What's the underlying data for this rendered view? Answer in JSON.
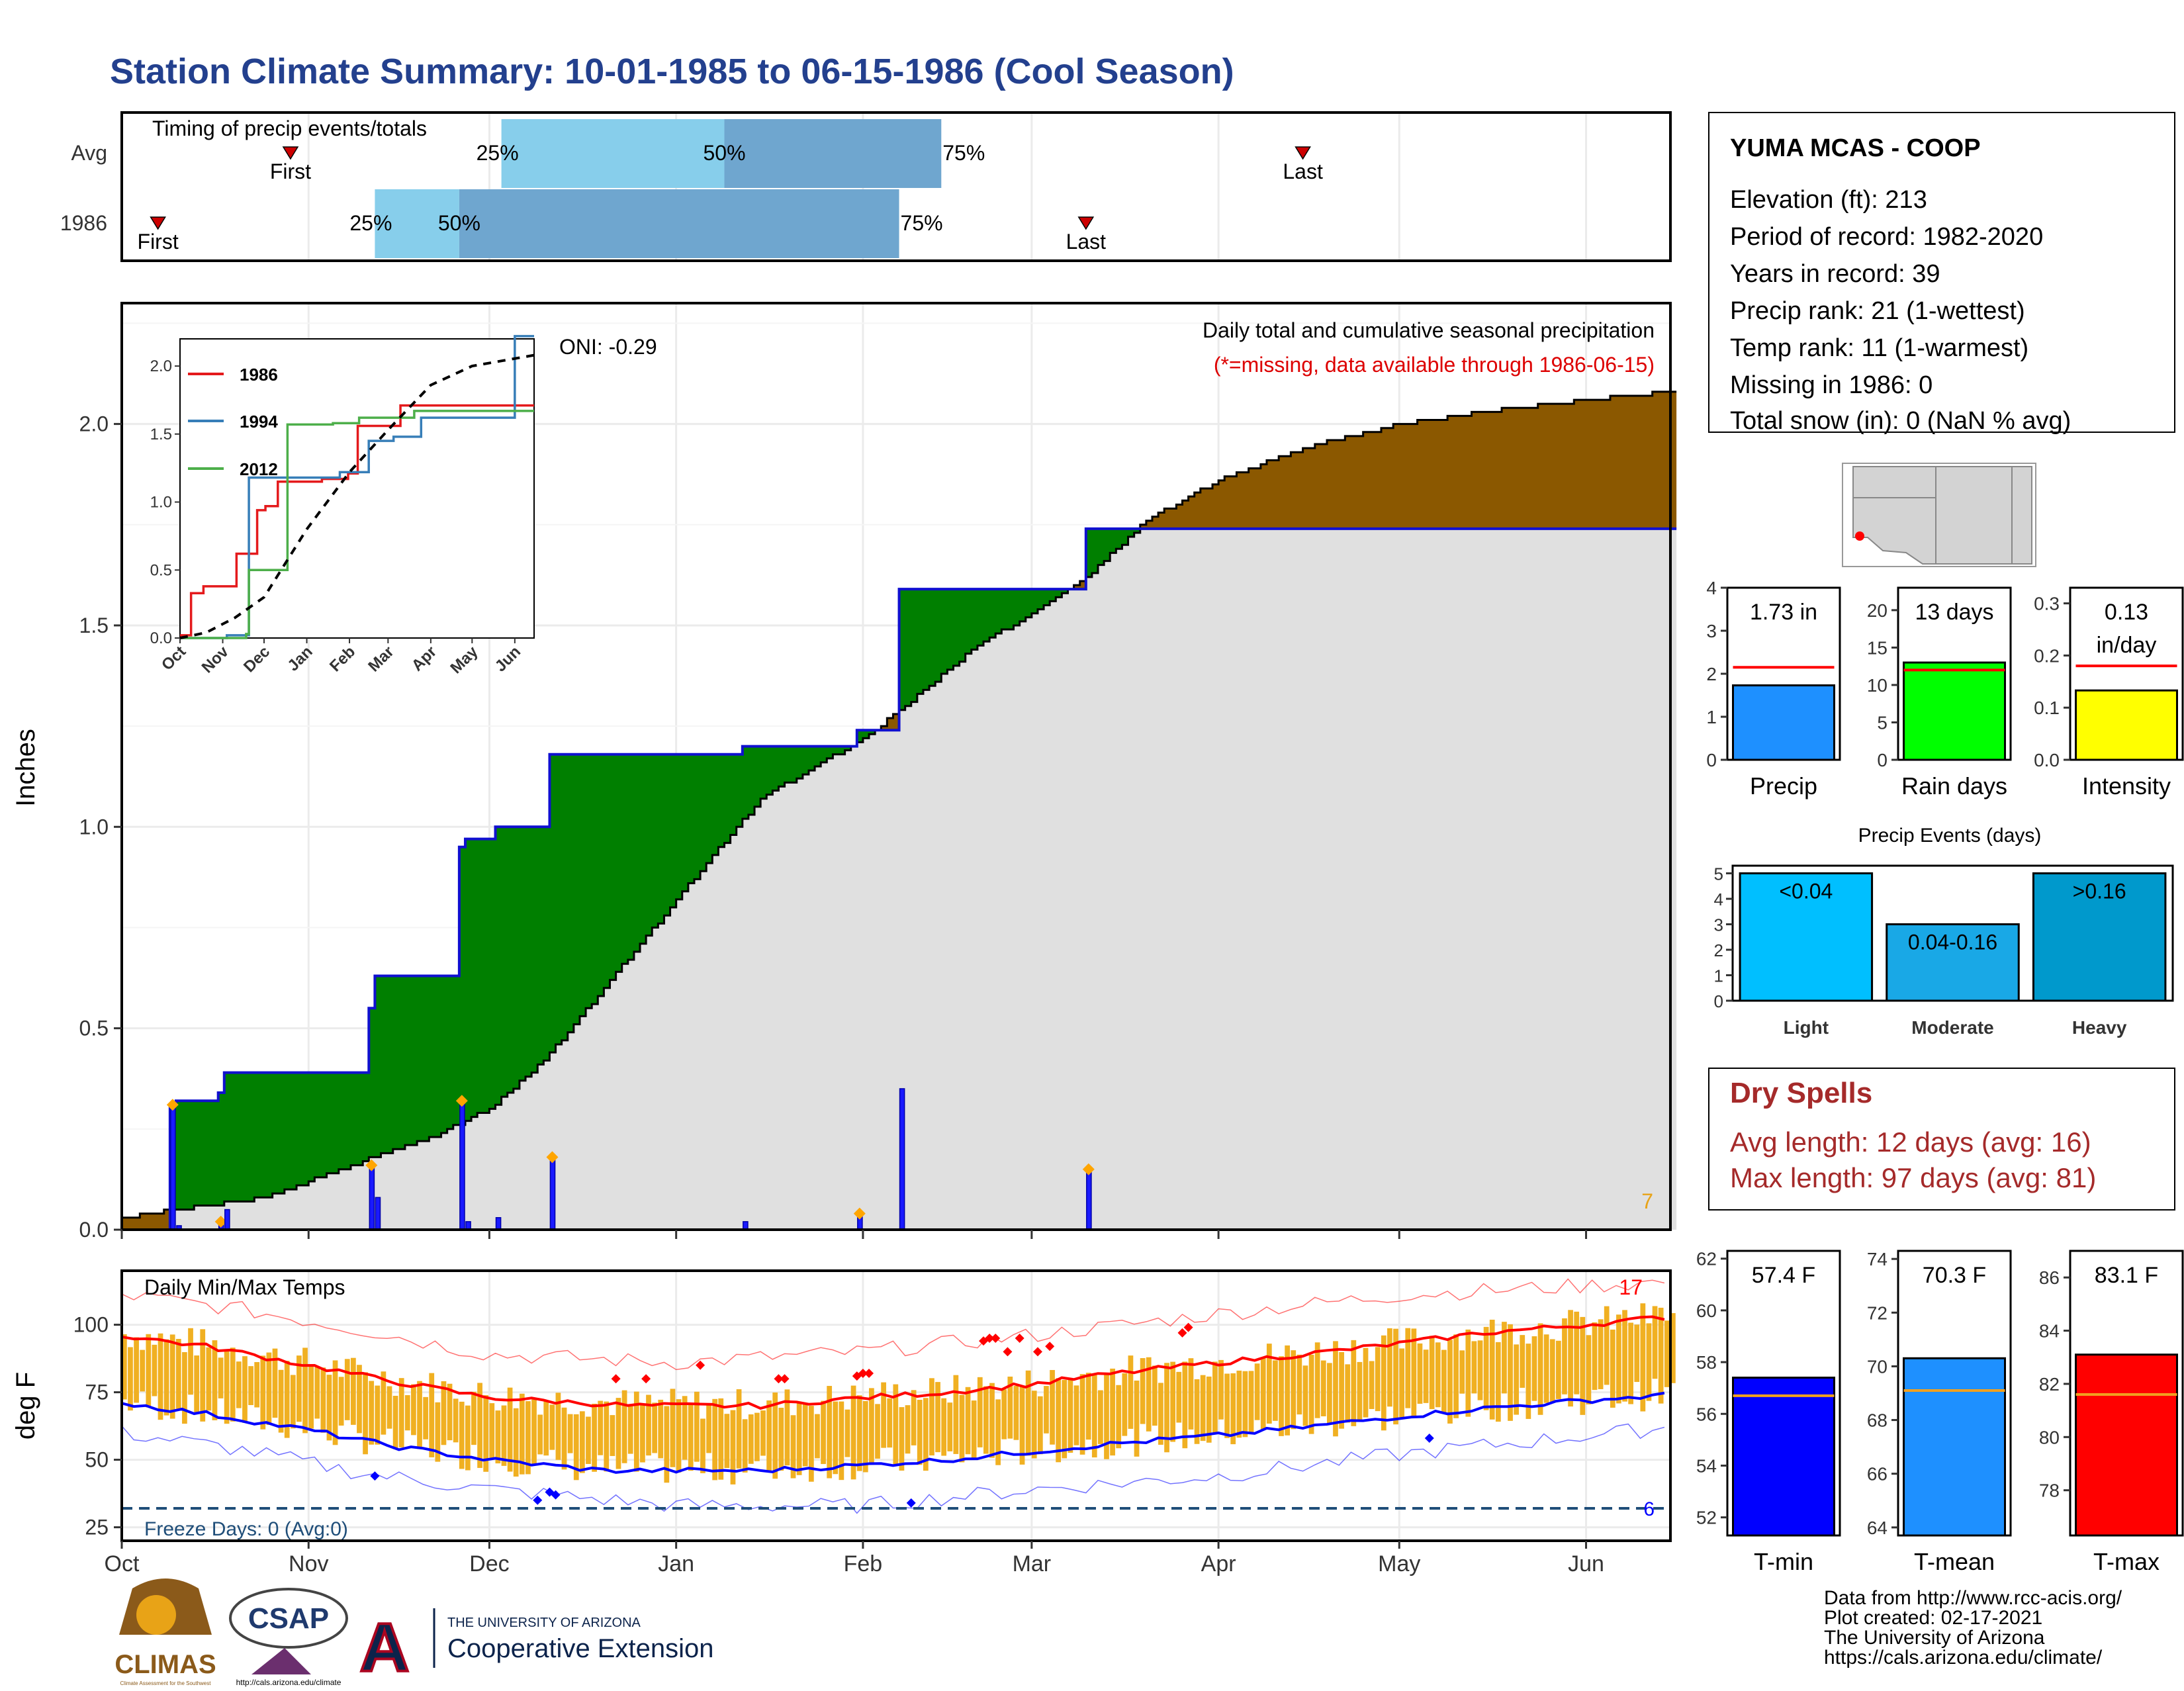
{
  "title": "Station Climate Summary: 10-01-1985 to 06-15-1986 (Cool Season)",
  "months": [
    "Oct",
    "Nov",
    "Dec",
    "Jan",
    "Feb",
    "Mar",
    "Apr",
    "May",
    "Jun"
  ],
  "timing": {
    "label": "Timing of precip events/totals",
    "rows": [
      "Avg",
      "1986"
    ],
    "first_label": "First",
    "last_label": "Last",
    "pct_labels": [
      "25%",
      "50%",
      "75%"
    ],
    "avg": {
      "first": "1985-10-29",
      "p25": "1985-12-03",
      "p50": "1986-01-09",
      "p75": "1986-02-14",
      "last": "1986-04-15"
    },
    "y1986": {
      "first": "1985-10-07",
      "p25": "1985-11-12",
      "p50": "1985-11-26",
      "p75": "1986-02-07",
      "last": "1986-03-10"
    },
    "colors": {
      "light": "#87ceeb",
      "dark": "#6fa6cf",
      "marker": "#cc0000"
    }
  },
  "precip": {
    "ylabel": "Inches",
    "yticks": [
      0.0,
      0.5,
      1.0,
      1.5,
      2.0
    ],
    "ytick_labels": [
      "0.0",
      "0.5",
      "1.0",
      "1.5",
      "2.0"
    ],
    "oni_label": "ONI: -0.29",
    "header_line1": "Daily total and cumulative seasonal precipitation",
    "header_line2": "(*=missing, data available through 1986-06-15)",
    "count_label": "7",
    "colors": {
      "observed": "#1010d0",
      "normal": "#000000",
      "above": "#007f00",
      "below": "#8b5800",
      "fill": "#e0e0e0",
      "daily": "#1a1aff",
      "dot": "#ffa500",
      "missing_text": "#dd0000",
      "count_text": "#e8a317"
    },
    "daily_events": [
      {
        "date": "1985-10-09",
        "value": 0.31,
        "marked": true
      },
      {
        "date": "1985-10-10",
        "value": 0.01,
        "marked": false
      },
      {
        "date": "1985-10-17",
        "value": 0.02,
        "marked": true
      },
      {
        "date": "1985-10-18",
        "value": 0.05,
        "marked": false
      },
      {
        "date": "1985-11-11",
        "value": 0.16,
        "marked": true
      },
      {
        "date": "1985-11-12",
        "value": 0.08,
        "marked": false
      },
      {
        "date": "1985-11-26",
        "value": 0.32,
        "marked": true
      },
      {
        "date": "1985-11-27",
        "value": 0.02,
        "marked": false
      },
      {
        "date": "1985-12-02",
        "value": 0.03,
        "marked": false
      },
      {
        "date": "1985-12-11",
        "value": 0.18,
        "marked": true
      },
      {
        "date": "1986-01-12",
        "value": 0.02,
        "marked": false
      },
      {
        "date": "1986-01-31",
        "value": 0.04,
        "marked": true
      },
      {
        "date": "1986-02-07",
        "value": 0.35,
        "marked": false
      },
      {
        "date": "1986-03-10",
        "value": 0.15,
        "marked": true
      }
    ],
    "normal_curve": [
      {
        "date": "1985-10-01",
        "value": 0.03
      },
      {
        "date": "1985-10-10",
        "value": 0.05
      },
      {
        "date": "1985-10-25",
        "value": 0.08
      },
      {
        "date": "1985-11-10",
        "value": 0.17
      },
      {
        "date": "1985-11-20",
        "value": 0.22
      },
      {
        "date": "1985-12-01",
        "value": 0.3
      },
      {
        "date": "1985-12-10",
        "value": 0.42
      },
      {
        "date": "1985-12-20",
        "value": 0.6
      },
      {
        "date": "1986-01-01",
        "value": 0.82
      },
      {
        "date": "1986-01-15",
        "value": 1.07
      },
      {
        "date": "1986-02-01",
        "value": 1.22
      },
      {
        "date": "1986-02-08",
        "value": 1.3
      },
      {
        "date": "1986-02-20",
        "value": 1.45
      },
      {
        "date": "1986-03-01",
        "value": 1.53
      },
      {
        "date": "1986-03-10",
        "value": 1.62
      },
      {
        "date": "1986-03-20",
        "value": 1.76
      },
      {
        "date": "1986-04-01",
        "value": 1.86
      },
      {
        "date": "1986-04-15",
        "value": 1.94
      },
      {
        "date": "1986-05-01",
        "value": 2.0
      },
      {
        "date": "1986-05-15",
        "value": 2.03
      },
      {
        "date": "1986-06-01",
        "value": 2.06
      },
      {
        "date": "1986-06-15",
        "value": 2.08
      }
    ]
  },
  "inset": {
    "legend": [
      "1986",
      "1994",
      "2012"
    ],
    "colors": [
      "#e41a1c",
      "#377eb8",
      "#4daf4a"
    ],
    "yticks": [
      0.0,
      0.5,
      1.0,
      1.5,
      2.0
    ],
    "ytick_labels": [
      "0.0",
      "0.5",
      "1.0",
      "1.5",
      "2.0"
    ],
    "ylim": [
      0,
      2.2
    ],
    "series": [
      {
        "name": "1986",
        "steps": [
          [
            "1985-10-01",
            0.02
          ],
          [
            "1985-10-09",
            0.33
          ],
          [
            "1985-10-18",
            0.38
          ],
          [
            "1985-11-11",
            0.62
          ],
          [
            "1985-11-26",
            0.94
          ],
          [
            "1985-12-02",
            0.97
          ],
          [
            "1985-12-11",
            1.15
          ],
          [
            "1986-01-12",
            1.17
          ],
          [
            "1986-01-31",
            1.21
          ],
          [
            "1986-02-07",
            1.56
          ],
          [
            "1986-03-10",
            1.71
          ],
          [
            "1986-06-15",
            1.71
          ]
        ]
      },
      {
        "name": "1994",
        "steps": [
          [
            "1985-10-01",
            0.0
          ],
          [
            "1985-11-04",
            0.02
          ],
          [
            "1985-11-20",
            1.18
          ],
          [
            "1986-01-25",
            1.22
          ],
          [
            "1986-02-15",
            1.45
          ],
          [
            "1986-03-05",
            1.48
          ],
          [
            "1986-03-25",
            1.62
          ],
          [
            "1986-05-20",
            1.62
          ],
          [
            "1986-06-01",
            2.22
          ],
          [
            "1986-06-15",
            2.22
          ]
        ]
      },
      {
        "name": "2012",
        "steps": [
          [
            "1985-10-01",
            0.0
          ],
          [
            "1985-11-18",
            0.03
          ],
          [
            "1985-11-20",
            0.5
          ],
          [
            "1985-12-18",
            1.57
          ],
          [
            "1986-01-20",
            1.58
          ],
          [
            "1986-02-08",
            1.62
          ],
          [
            "1986-03-20",
            1.67
          ],
          [
            "1986-06-15",
            1.67
          ]
        ]
      }
    ],
    "normal_curve": [
      {
        "date": "1985-10-01",
        "value": 0.0
      },
      {
        "date": "1985-10-20",
        "value": 0.04
      },
      {
        "date": "1985-11-10",
        "value": 0.15
      },
      {
        "date": "1985-12-01",
        "value": 0.3
      },
      {
        "date": "1986-01-01",
        "value": 0.8
      },
      {
        "date": "1986-02-01",
        "value": 1.22
      },
      {
        "date": "1986-03-01",
        "value": 1.53
      },
      {
        "date": "1986-04-01",
        "value": 1.86
      },
      {
        "date": "1986-05-01",
        "value": 2.0
      },
      {
        "date": "1986-06-15",
        "value": 2.08
      }
    ]
  },
  "temps": {
    "label": "Daily Min/Max Temps",
    "ylabel": "deg F",
    "yticks": [
      25,
      50,
      75,
      100
    ],
    "ytick_labels": [
      "25",
      "50",
      "75",
      "100"
    ],
    "ylim": [
      20,
      120
    ],
    "freeze_label": "Freeze Days: 0 (Avg:0)",
    "freeze_temp": 32,
    "record_high_count": "17",
    "record_low_count": "6",
    "colors": {
      "bar": "#f0b022",
      "max_normal": "#ff0000",
      "min_normal": "#0000ff",
      "freeze": "#1f4e79",
      "record_high": "#ff0000",
      "record_low": "#0000ff"
    },
    "max_normal": [
      {
        "date": "1985-10-01",
        "value": 96
      },
      {
        "date": "1985-10-15",
        "value": 92
      },
      {
        "date": "1985-11-01",
        "value": 85
      },
      {
        "date": "1985-11-15",
        "value": 79
      },
      {
        "date": "1985-12-01",
        "value": 73
      },
      {
        "date": "1985-12-25",
        "value": 70
      },
      {
        "date": "1986-01-15",
        "value": 70
      },
      {
        "date": "1986-02-01",
        "value": 73
      },
      {
        "date": "1986-02-15",
        "value": 75
      },
      {
        "date": "1986-03-01",
        "value": 78
      },
      {
        "date": "1986-03-15",
        "value": 82
      },
      {
        "date": "1986-04-01",
        "value": 86
      },
      {
        "date": "1986-04-15",
        "value": 89
      },
      {
        "date": "1986-05-01",
        "value": 93
      },
      {
        "date": "1986-05-15",
        "value": 97
      },
      {
        "date": "1986-06-01",
        "value": 100
      },
      {
        "date": "1986-06-15",
        "value": 103
      }
    ],
    "min_normal": [
      {
        "date": "1985-10-01",
        "value": 71
      },
      {
        "date": "1985-10-15",
        "value": 67
      },
      {
        "date": "1985-11-01",
        "value": 61
      },
      {
        "date": "1985-11-15",
        "value": 55
      },
      {
        "date": "1985-12-01",
        "value": 50
      },
      {
        "date": "1985-12-20",
        "value": 46
      },
      {
        "date": "1986-01-15",
        "value": 46
      },
      {
        "date": "1986-02-01",
        "value": 48
      },
      {
        "date": "1986-02-15",
        "value": 50
      },
      {
        "date": "1986-03-01",
        "value": 53
      },
      {
        "date": "1986-03-15",
        "value": 56
      },
      {
        "date": "1986-04-01",
        "value": 59
      },
      {
        "date": "1986-04-15",
        "value": 62
      },
      {
        "date": "1986-05-01",
        "value": 66
      },
      {
        "date": "1986-05-15",
        "value": 69
      },
      {
        "date": "1986-06-01",
        "value": 72
      },
      {
        "date": "1986-06-15",
        "value": 74
      }
    ],
    "record_high_line": [
      {
        "date": "1985-10-01",
        "value": 111
      },
      {
        "date": "1985-10-20",
        "value": 106
      },
      {
        "date": "1985-11-10",
        "value": 98
      },
      {
        "date": "1985-12-01",
        "value": 89
      },
      {
        "date": "1986-01-01",
        "value": 86
      },
      {
        "date": "1986-02-01",
        "value": 90
      },
      {
        "date": "1986-03-01",
        "value": 96
      },
      {
        "date": "1986-04-01",
        "value": 104
      },
      {
        "date": "1986-05-01",
        "value": 111
      },
      {
        "date": "1986-06-15",
        "value": 116
      }
    ],
    "record_low_line": [
      {
        "date": "1985-10-01",
        "value": 60
      },
      {
        "date": "1985-10-20",
        "value": 54
      },
      {
        "date": "1985-11-10",
        "value": 45
      },
      {
        "date": "1985-12-01",
        "value": 39
      },
      {
        "date": "1986-01-01",
        "value": 33
      },
      {
        "date": "1986-02-01",
        "value": 33
      },
      {
        "date": "1986-03-01",
        "value": 39
      },
      {
        "date": "1986-04-01",
        "value": 44
      },
      {
        "date": "1986-05-01",
        "value": 52
      },
      {
        "date": "1986-06-15",
        "value": 62
      }
    ],
    "high_marks": [
      {
        "date": "1985-12-22",
        "value": 80
      },
      {
        "date": "1985-12-27",
        "value": 80
      },
      {
        "date": "1986-01-05",
        "value": 85
      },
      {
        "date": "1986-01-18",
        "value": 80
      },
      {
        "date": "1986-01-19",
        "value": 80
      },
      {
        "date": "1986-02-01",
        "value": 82
      },
      {
        "date": "1986-02-02",
        "value": 82
      },
      {
        "date": "1986-02-21",
        "value": 94
      },
      {
        "date": "1986-02-22",
        "value": 95
      },
      {
        "date": "1986-02-23",
        "value": 95
      },
      {
        "date": "1986-02-25",
        "value": 90
      },
      {
        "date": "1986-02-27",
        "value": 95
      },
      {
        "date": "1986-03-02",
        "value": 90
      },
      {
        "date": "1986-03-04",
        "value": 92
      },
      {
        "date": "1986-03-26",
        "value": 97
      },
      {
        "date": "1986-03-27",
        "value": 99
      },
      {
        "date": "1986-01-31",
        "value": 81
      }
    ],
    "low_marks": [
      {
        "date": "1985-11-12",
        "value": 44
      },
      {
        "date": "1985-12-09",
        "value": 35
      },
      {
        "date": "1985-12-11",
        "value": 38
      },
      {
        "date": "1985-12-12",
        "value": 37
      },
      {
        "date": "1986-02-09",
        "value": 34
      },
      {
        "date": "1986-05-06",
        "value": 58
      }
    ]
  },
  "station": {
    "name": "YUMA MCAS - COOP",
    "lines": [
      "Elevation (ft): 213",
      "Period of record: 1982-2020",
      "Years in record: 39",
      "Precip rank: 21 (1-wettest)",
      "Temp rank: 11 (1-warmest)",
      "Missing in 1986: 0",
      "Total snow (in): 0 (NaN % avg)"
    ]
  },
  "summary_bars": [
    {
      "label": "Precip",
      "value": 1.73,
      "value_text": "1.73 in",
      "normal": 2.15,
      "ylim": [
        0,
        4
      ],
      "yticks": [
        0,
        1,
        2,
        3,
        4
      ],
      "color": "#1e90ff"
    },
    {
      "label": "Rain days",
      "value": 13,
      "value_text": "13 days",
      "normal": 12,
      "ylim": [
        0,
        23
      ],
      "yticks": [
        0,
        5,
        10,
        15,
        20
      ],
      "color": "#00ff00"
    },
    {
      "label": "Intensity",
      "value": 0.133,
      "value_text": "0.13 in/day",
      "normal": 0.18,
      "ylim": [
        0,
        0.33
      ],
      "yticks": [
        0.0,
        0.1,
        0.2,
        0.3
      ],
      "ytick_labels": [
        "0.0",
        "0.1",
        "0.2",
        "0.3"
      ],
      "color": "#ffff00"
    }
  ],
  "events": {
    "title": "Precip Events (days)",
    "categories": [
      "Light",
      "Moderate",
      "Heavy"
    ],
    "values": [
      5,
      3,
      5
    ],
    "range_labels": [
      "<0.04",
      "0.04-0.16",
      ">0.16"
    ],
    "colors": [
      "#00bfff",
      "#19a8e6",
      "#0099cc"
    ],
    "ylim": [
      0,
      5.3
    ],
    "yticks": [
      0,
      1,
      2,
      3,
      4,
      5
    ]
  },
  "dry_spells": {
    "title": "Dry Spells",
    "avg_line": "Avg length: 12 days (avg: 16)",
    "max_line": "Max length: 97 days (avg: 81)",
    "color": "#a52a2a"
  },
  "temp_bars": [
    {
      "label": "T-min",
      "value": 57.4,
      "value_text": "57.4 F",
      "normal": 56.7,
      "ylim": [
        51.3,
        62.3
      ],
      "yticks": [
        52,
        54,
        56,
        58,
        60,
        62
      ],
      "color": "#0000ff"
    },
    {
      "label": "T-mean",
      "value": 70.3,
      "value_text": "70.3 F",
      "normal": 69.1,
      "ylim": [
        63.7,
        74.3
      ],
      "yticks": [
        64,
        66,
        68,
        70,
        72,
        74
      ],
      "color": "#1e90ff"
    },
    {
      "label": "T-max",
      "value": 83.1,
      "value_text": "83.1 F",
      "normal": 81.6,
      "ylim": [
        76.3,
        87.0
      ],
      "yticks": [
        78,
        80,
        82,
        84,
        86
      ],
      "color": "#ff0000"
    }
  ],
  "footer": {
    "lines": [
      "Data from http://www.rcc-acis.org/",
      "Plot created: 02-17-2021",
      "The University of Arizona",
      "https://cals.arizona.edu/climate/"
    ],
    "climas_label": "CLIMAS",
    "climas_small": "Climate Assessment for the Southwest",
    "csap_label": "CSAP",
    "csap_url": "http://cals.arizona.edu/climate",
    "ua_small": "THE UNIVERSITY OF ARIZONA",
    "ua_big": "Cooperative Extension"
  }
}
